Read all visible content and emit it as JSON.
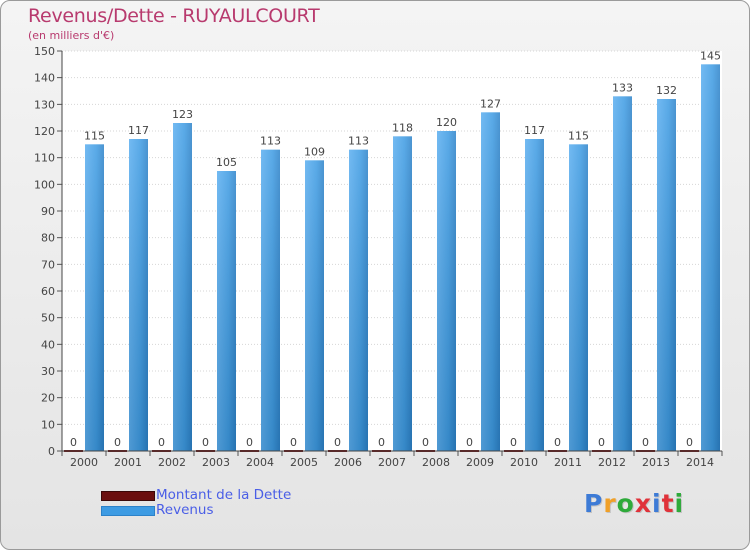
{
  "header": {
    "title": "Revenus/Dette - RUYAULCOURT",
    "subtitle": "(en milliers d'€)"
  },
  "colors": {
    "title": "#b83a6e",
    "revenus": "#3d9be3",
    "dette": "#6b0f0f",
    "legend_text": "#4a5ee6",
    "grid": "#d6d6d6"
  },
  "legend": {
    "items": [
      {
        "label": "Montant de la Dette",
        "color": "#6b0f0f"
      },
      {
        "label": "Revenus",
        "color": "#3d9be3"
      }
    ]
  },
  "logo": {
    "text": "Proxiti"
  },
  "chart_data": {
    "type": "bar",
    "categories": [
      "2000",
      "2001",
      "2002",
      "2003",
      "2004",
      "2005",
      "2006",
      "2007",
      "2008",
      "2009",
      "2010",
      "2011",
      "2012",
      "2013",
      "2014"
    ],
    "series": [
      {
        "name": "Montant de la Dette",
        "values": [
          0,
          0,
          0,
          0,
          0,
          0,
          0,
          0,
          0,
          0,
          0,
          0,
          0,
          0,
          0
        ]
      },
      {
        "name": "Revenus",
        "values": [
          115,
          117,
          123,
          105,
          113,
          109,
          113,
          118,
          120,
          127,
          117,
          115,
          133,
          132,
          145
        ]
      }
    ],
    "ylim": [
      0,
      150
    ],
    "yticks": [
      0,
      10,
      20,
      30,
      40,
      50,
      60,
      70,
      80,
      90,
      100,
      110,
      120,
      130,
      140,
      150
    ],
    "grid": true,
    "legend_position": "bottom-left"
  }
}
